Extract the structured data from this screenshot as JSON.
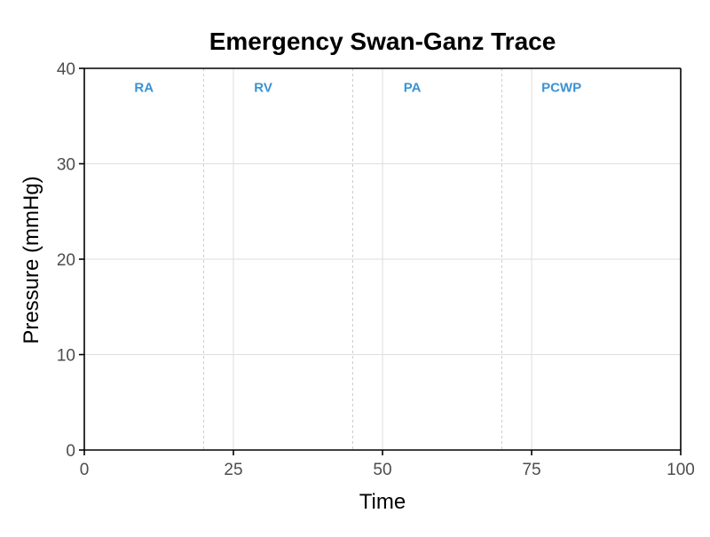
{
  "chart_data": {
    "type": "line",
    "title": "Emergency Swan-Ganz Trace",
    "xlabel": "Time",
    "ylabel": "Pressure (mmHg)",
    "xlim": [
      0,
      100
    ],
    "ylim": [
      0,
      40
    ],
    "x_ticks": [
      0,
      25,
      50,
      75,
      100
    ],
    "x_tick_labels": [
      "0",
      "25",
      "50",
      "75",
      "100"
    ],
    "y_ticks": [
      0,
      10,
      20,
      30,
      40
    ],
    "y_tick_labels": [
      "0",
      "10",
      "20",
      "30",
      "40"
    ],
    "grid": true,
    "series": [],
    "dividers": [
      20,
      45,
      70
    ],
    "regions": [
      {
        "label": "RA",
        "x": 10,
        "y": 38
      },
      {
        "label": "RV",
        "x": 30,
        "y": 38
      },
      {
        "label": "PA",
        "x": 55,
        "y": 38
      },
      {
        "label": "PCWP",
        "x": 80,
        "y": 38
      }
    ],
    "colors": {
      "region_label": "#3a92d5"
    }
  }
}
